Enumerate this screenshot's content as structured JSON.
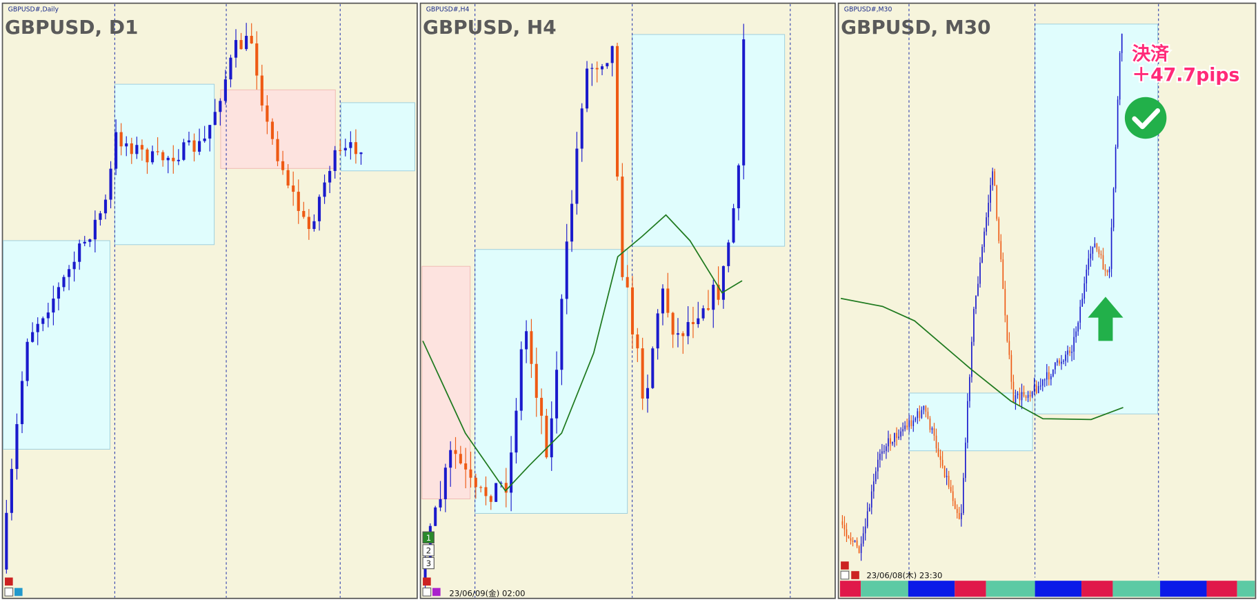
{
  "panels": [
    {
      "small_label": "GBPUSD#,Daily",
      "title": "GBPUSD, D1"
    },
    {
      "small_label": "GBPUSD#,H4",
      "title": "GBPUSD, H4",
      "buttons": [
        "1",
        "2",
        "3"
      ],
      "timestamp": "23/06/09(金) 02:00"
    },
    {
      "small_label": "GBPUSD#,M30",
      "title": "GBPUSD, M30",
      "annotation": {
        "line1": "決済",
        "line2": "＋47.7pips"
      },
      "timestamp": "23/06/08(木) 23:30"
    }
  ]
}
